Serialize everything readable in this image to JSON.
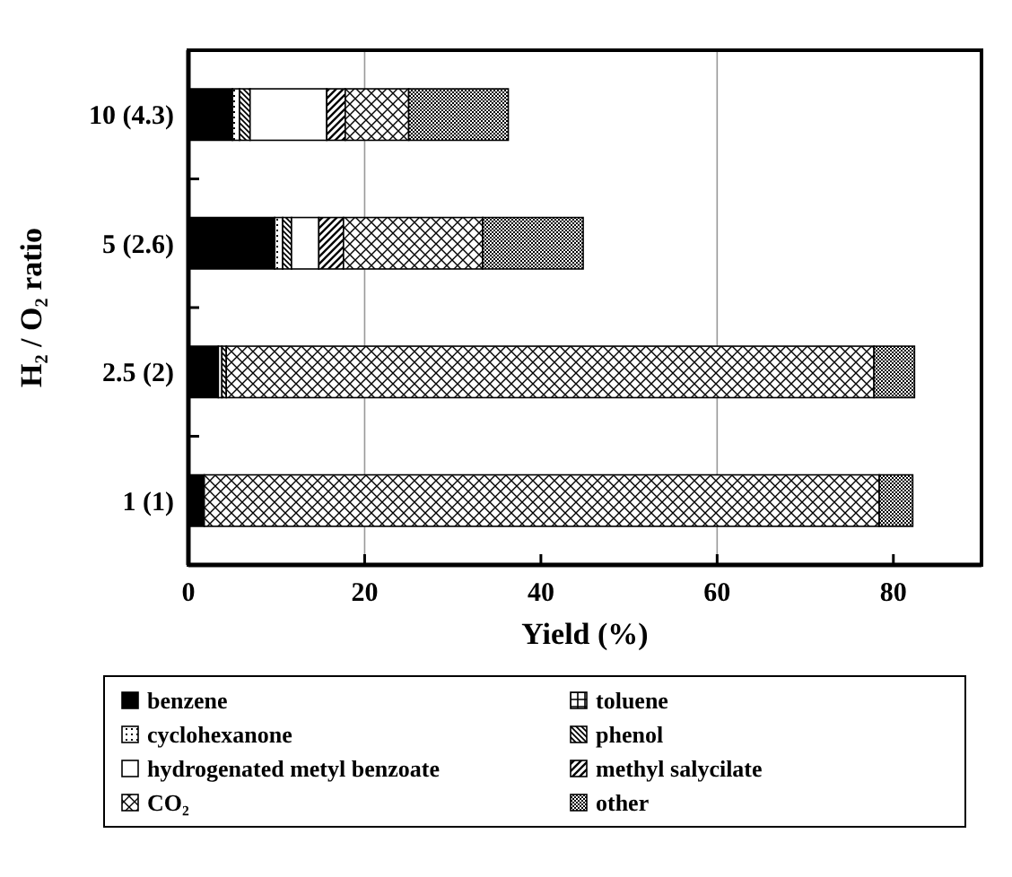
{
  "chart_data": {
    "type": "bar",
    "orientation": "horizontal",
    "stacked": true,
    "xlabel": "Yield (%)",
    "ylabel": "H₂ / O₂ ratio",
    "categories": [
      "10 (4.3)",
      "5 (2.6)",
      "2.5 (2)",
      "1 (1)"
    ],
    "xlim": [
      0,
      90
    ],
    "xticks": [
      0,
      20,
      40,
      60,
      80
    ],
    "ref_lines": [
      {
        "axis": "x",
        "value": 20,
        "color": "#999999"
      },
      {
        "axis": "x",
        "value": 60,
        "color": "#999999"
      }
    ],
    "legend": "bottom",
    "series": [
      {
        "name": "benzene",
        "color": "#000000",
        "values": [
          5.0,
          9.8,
          3.4,
          1.8
        ]
      },
      {
        "name": "toluene",
        "color": "#000000",
        "values": [
          0,
          0,
          0,
          0
        ]
      },
      {
        "name": "cyclohexanone",
        "color": "#000000",
        "values": [
          0.8,
          0.9,
          0.4,
          0
        ]
      },
      {
        "name": "phenol",
        "color": "#000000",
        "values": [
          1.2,
          1.0,
          0.5,
          0
        ]
      },
      {
        "name": "hydrogenated metyl benzoate",
        "color": "#ffffff",
        "values": [
          8.7,
          3.1,
          0,
          0
        ]
      },
      {
        "name": "methyl salycilate",
        "color": "#000000",
        "values": [
          2.1,
          2.8,
          0,
          0
        ]
      },
      {
        "name": "CO₂",
        "color": "#000000",
        "values": [
          7.2,
          15.8,
          73.5,
          76.6
        ]
      },
      {
        "name": "other",
        "color": "#000000",
        "values": [
          11.3,
          11.4,
          4.6,
          3.8
        ]
      }
    ]
  }
}
